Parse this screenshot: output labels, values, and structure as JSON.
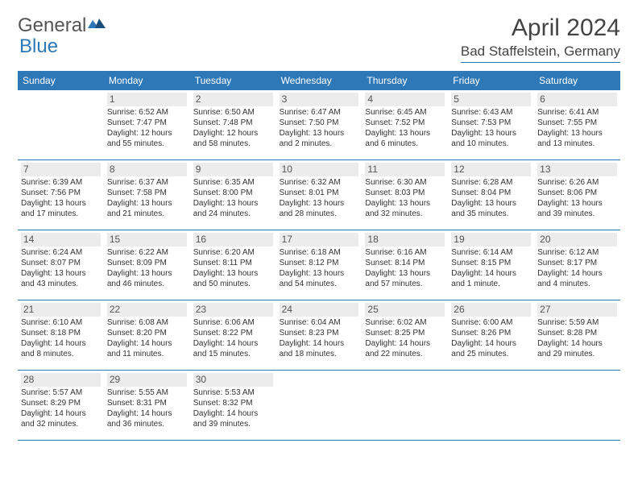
{
  "logo": {
    "text1": "General",
    "text2": "Blue"
  },
  "title": "April 2024",
  "location": "Bad Staffelstein, Germany",
  "colors": {
    "header_bg": "#2f78b7",
    "header_text": "#ffffff",
    "num_bg": "#ececec",
    "body_text": "#333333",
    "rule": "#2f78b7"
  },
  "day_names": [
    "Sunday",
    "Monday",
    "Tuesday",
    "Wednesday",
    "Thursday",
    "Friday",
    "Saturday"
  ],
  "weeks": [
    [
      {
        "n": "",
        "empty": true
      },
      {
        "n": "1",
        "sr": "Sunrise: 6:52 AM",
        "ss": "Sunset: 7:47 PM",
        "dl": "Daylight: 12 hours and 55 minutes."
      },
      {
        "n": "2",
        "sr": "Sunrise: 6:50 AM",
        "ss": "Sunset: 7:48 PM",
        "dl": "Daylight: 12 hours and 58 minutes."
      },
      {
        "n": "3",
        "sr": "Sunrise: 6:47 AM",
        "ss": "Sunset: 7:50 PM",
        "dl": "Daylight: 13 hours and 2 minutes."
      },
      {
        "n": "4",
        "sr": "Sunrise: 6:45 AM",
        "ss": "Sunset: 7:52 PM",
        "dl": "Daylight: 13 hours and 6 minutes."
      },
      {
        "n": "5",
        "sr": "Sunrise: 6:43 AM",
        "ss": "Sunset: 7:53 PM",
        "dl": "Daylight: 13 hours and 10 minutes."
      },
      {
        "n": "6",
        "sr": "Sunrise: 6:41 AM",
        "ss": "Sunset: 7:55 PM",
        "dl": "Daylight: 13 hours and 13 minutes."
      }
    ],
    [
      {
        "n": "7",
        "sr": "Sunrise: 6:39 AM",
        "ss": "Sunset: 7:56 PM",
        "dl": "Daylight: 13 hours and 17 minutes."
      },
      {
        "n": "8",
        "sr": "Sunrise: 6:37 AM",
        "ss": "Sunset: 7:58 PM",
        "dl": "Daylight: 13 hours and 21 minutes."
      },
      {
        "n": "9",
        "sr": "Sunrise: 6:35 AM",
        "ss": "Sunset: 8:00 PM",
        "dl": "Daylight: 13 hours and 24 minutes."
      },
      {
        "n": "10",
        "sr": "Sunrise: 6:32 AM",
        "ss": "Sunset: 8:01 PM",
        "dl": "Daylight: 13 hours and 28 minutes."
      },
      {
        "n": "11",
        "sr": "Sunrise: 6:30 AM",
        "ss": "Sunset: 8:03 PM",
        "dl": "Daylight: 13 hours and 32 minutes."
      },
      {
        "n": "12",
        "sr": "Sunrise: 6:28 AM",
        "ss": "Sunset: 8:04 PM",
        "dl": "Daylight: 13 hours and 35 minutes."
      },
      {
        "n": "13",
        "sr": "Sunrise: 6:26 AM",
        "ss": "Sunset: 8:06 PM",
        "dl": "Daylight: 13 hours and 39 minutes."
      }
    ],
    [
      {
        "n": "14",
        "sr": "Sunrise: 6:24 AM",
        "ss": "Sunset: 8:07 PM",
        "dl": "Daylight: 13 hours and 43 minutes."
      },
      {
        "n": "15",
        "sr": "Sunrise: 6:22 AM",
        "ss": "Sunset: 8:09 PM",
        "dl": "Daylight: 13 hours and 46 minutes."
      },
      {
        "n": "16",
        "sr": "Sunrise: 6:20 AM",
        "ss": "Sunset: 8:11 PM",
        "dl": "Daylight: 13 hours and 50 minutes."
      },
      {
        "n": "17",
        "sr": "Sunrise: 6:18 AM",
        "ss": "Sunset: 8:12 PM",
        "dl": "Daylight: 13 hours and 54 minutes."
      },
      {
        "n": "18",
        "sr": "Sunrise: 6:16 AM",
        "ss": "Sunset: 8:14 PM",
        "dl": "Daylight: 13 hours and 57 minutes."
      },
      {
        "n": "19",
        "sr": "Sunrise: 6:14 AM",
        "ss": "Sunset: 8:15 PM",
        "dl": "Daylight: 14 hours and 1 minute."
      },
      {
        "n": "20",
        "sr": "Sunrise: 6:12 AM",
        "ss": "Sunset: 8:17 PM",
        "dl": "Daylight: 14 hours and 4 minutes."
      }
    ],
    [
      {
        "n": "21",
        "sr": "Sunrise: 6:10 AM",
        "ss": "Sunset: 8:18 PM",
        "dl": "Daylight: 14 hours and 8 minutes."
      },
      {
        "n": "22",
        "sr": "Sunrise: 6:08 AM",
        "ss": "Sunset: 8:20 PM",
        "dl": "Daylight: 14 hours and 11 minutes."
      },
      {
        "n": "23",
        "sr": "Sunrise: 6:06 AM",
        "ss": "Sunset: 8:22 PM",
        "dl": "Daylight: 14 hours and 15 minutes."
      },
      {
        "n": "24",
        "sr": "Sunrise: 6:04 AM",
        "ss": "Sunset: 8:23 PM",
        "dl": "Daylight: 14 hours and 18 minutes."
      },
      {
        "n": "25",
        "sr": "Sunrise: 6:02 AM",
        "ss": "Sunset: 8:25 PM",
        "dl": "Daylight: 14 hours and 22 minutes."
      },
      {
        "n": "26",
        "sr": "Sunrise: 6:00 AM",
        "ss": "Sunset: 8:26 PM",
        "dl": "Daylight: 14 hours and 25 minutes."
      },
      {
        "n": "27",
        "sr": "Sunrise: 5:59 AM",
        "ss": "Sunset: 8:28 PM",
        "dl": "Daylight: 14 hours and 29 minutes."
      }
    ],
    [
      {
        "n": "28",
        "sr": "Sunrise: 5:57 AM",
        "ss": "Sunset: 8:29 PM",
        "dl": "Daylight: 14 hours and 32 minutes."
      },
      {
        "n": "29",
        "sr": "Sunrise: 5:55 AM",
        "ss": "Sunset: 8:31 PM",
        "dl": "Daylight: 14 hours and 36 minutes."
      },
      {
        "n": "30",
        "sr": "Sunrise: 5:53 AM",
        "ss": "Sunset: 8:32 PM",
        "dl": "Daylight: 14 hours and 39 minutes."
      },
      {
        "n": "",
        "empty": true
      },
      {
        "n": "",
        "empty": true
      },
      {
        "n": "",
        "empty": true
      },
      {
        "n": "",
        "empty": true
      }
    ]
  ]
}
